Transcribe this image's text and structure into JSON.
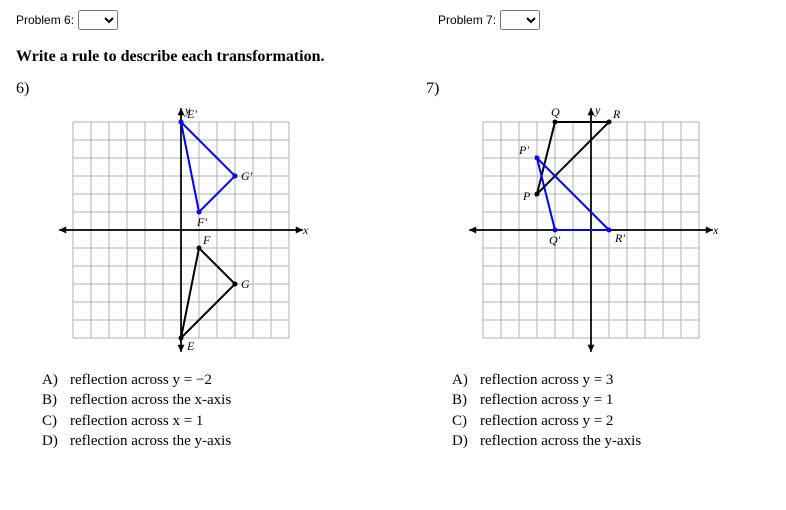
{
  "top": {
    "label6": "Problem 6:",
    "label7": "Problem 7:"
  },
  "instruction": "Write a rule to describe each transformation.",
  "p6": {
    "number": "6)",
    "choices": [
      {
        "letter": "A)",
        "text": "reflection across y = −2"
      },
      {
        "letter": "B)",
        "text": "reflection across the x-axis"
      },
      {
        "letter": "C)",
        "text": "reflection across x = 1"
      },
      {
        "letter": "D)",
        "text": "reflection across the y-axis"
      }
    ],
    "graph": {
      "grid_min": -6,
      "grid_max": 6,
      "cell": 18,
      "grid_color": "#b0b0b0",
      "axis_color": "#000000",
      "black_stroke": "#000000",
      "blue_stroke": "#0000ff",
      "image_tri": {
        "E": [
          0,
          6
        ],
        "F": [
          1,
          1
        ],
        "G": [
          3,
          3
        ]
      },
      "pre_tri": {
        "E_": [
          0,
          -6
        ],
        "F_": [
          1,
          -1
        ],
        "G_": [
          3,
          -3
        ]
      },
      "axis_labels": {
        "x": "x",
        "y": "y"
      },
      "pt_labels": {
        "E'": "E'",
        "F'": "F'",
        "G'": "G'",
        "E": "E",
        "F": "F",
        "G": "G"
      }
    }
  },
  "p7": {
    "number": "7)",
    "choices": [
      {
        "letter": "A)",
        "text": "reflection across y = 3"
      },
      {
        "letter": "B)",
        "text": "reflection across y = 1"
      },
      {
        "letter": "C)",
        "text": "reflection across y = 2"
      },
      {
        "letter": "D)",
        "text": "reflection across the y-axis"
      }
    ],
    "graph": {
      "grid_min": -6,
      "grid_max": 6,
      "cell": 18,
      "grid_color": "#b0b0b0",
      "axis_color": "#000000",
      "black_stroke": "#000000",
      "blue_stroke": "#0000ff",
      "pre_tri": {
        "P": [
          -3,
          2
        ],
        "Q": [
          -2,
          6
        ],
        "R": [
          1,
          6
        ]
      },
      "image_tri": {
        "P'": [
          -3,
          4
        ],
        "Q'": [
          -2,
          0
        ],
        "R'": [
          1,
          0
        ]
      },
      "axis_labels": {
        "x": "x",
        "y": "y"
      },
      "pt_labels": {
        "P": "P",
        "Q": "Q",
        "R": "R",
        "P'": "P'",
        "Q'": "Q'",
        "R'": "R'"
      }
    }
  }
}
